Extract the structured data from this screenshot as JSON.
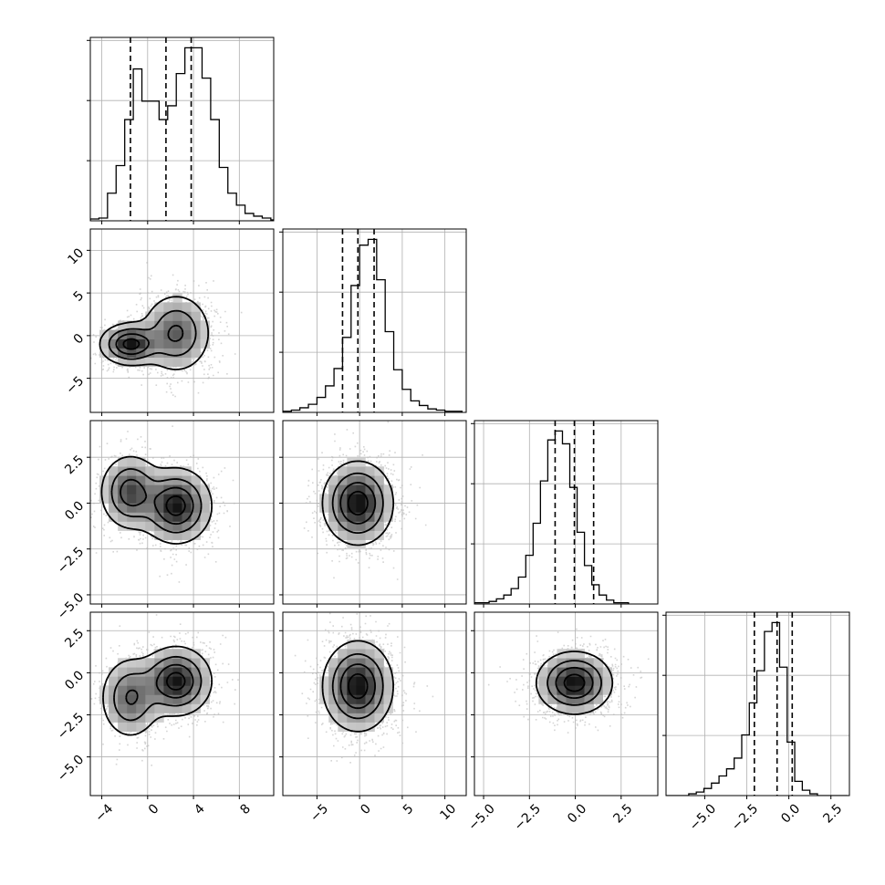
{
  "chart_data": {
    "type": "corner",
    "variables": 4,
    "grid": true,
    "quantile_line_style": "dashed",
    "ranges": [
      [
        -5,
        11
      ],
      [
        -9,
        12.5
      ],
      [
        -5.5,
        4.5
      ],
      [
        -7.3,
        3.6
      ]
    ],
    "ticks": [
      [
        -4,
        0,
        4,
        8
      ],
      [
        -5,
        0,
        5,
        10
      ],
      [
        -5.0,
        -2.5,
        0.0,
        2.5
      ],
      [
        -5.0,
        -2.5,
        0.0,
        2.5
      ]
    ],
    "tick_labels": [
      [
        "−4",
        "0",
        "4",
        "8"
      ],
      [
        "−5",
        "0",
        "5",
        "10"
      ],
      [
        "−5.0",
        "−2.5",
        "0.0",
        "2.5"
      ],
      [
        "−5.0",
        "−2.5",
        "0.0",
        "2.5"
      ]
    ],
    "marginals": [
      {
        "bin_start": -5.0,
        "bin_width": 0.75,
        "counts": [
          2,
          3,
          30,
          60,
          110,
          165,
          130,
          130,
          110,
          125,
          160,
          188,
          188,
          155,
          110,
          58,
          30,
          17,
          8,
          5,
          3,
          1
        ],
        "quantiles": [
          -1.5,
          1.6,
          3.8
        ]
      },
      {
        "bin_start": -9.0,
        "bin_width": 1.0,
        "counts": [
          1,
          2,
          4,
          7,
          13,
          23,
          38,
          65,
          110,
          145,
          150,
          115,
          70,
          37,
          20,
          10,
          6,
          3,
          2,
          1,
          1
        ],
        "quantiles": [
          -2.0,
          -0.2,
          1.7
        ]
      },
      {
        "bin_start": -5.5,
        "bin_width": 0.4,
        "counts": [
          1,
          1,
          2,
          4,
          7,
          12,
          21,
          38,
          63,
          96,
          128,
          135,
          125,
          91,
          56,
          30,
          15,
          7,
          3,
          1,
          1
        ],
        "quantiles": [
          -1.1,
          -0.05,
          1.0
        ]
      },
      {
        "bin_start": -7.3,
        "bin_width": 0.45,
        "counts": [
          0,
          0,
          0,
          1,
          2,
          4,
          7,
          11,
          15,
          21,
          34,
          52,
          70,
          92,
          97,
          72,
          30,
          8,
          3,
          1,
          0,
          0,
          0,
          0
        ],
        "quantiles": [
          -2.05,
          -0.7,
          0.2
        ]
      }
    ],
    "joint": [
      {
        "x": 0,
        "y": 1,
        "modes": [
          {
            "mx": -1.5,
            "my": -1.0,
            "sx": 1.3,
            "sy": 1.2,
            "w": 0.4
          },
          {
            "mx": 2.5,
            "my": 0.3,
            "sx": 1.5,
            "sy": 2.3,
            "w": 0.6
          }
        ]
      },
      {
        "x": 0,
        "y": 2,
        "modes": [
          {
            "mx": -1.5,
            "my": 0.6,
            "sx": 1.3,
            "sy": 1.0,
            "w": 0.4
          },
          {
            "mx": 2.5,
            "my": -0.15,
            "sx": 1.5,
            "sy": 1.0,
            "w": 0.6
          }
        ]
      },
      {
        "x": 0,
        "y": 3,
        "modes": [
          {
            "mx": -1.5,
            "my": -1.5,
            "sx": 1.3,
            "sy": 1.2,
            "w": 0.4
          },
          {
            "mx": 2.5,
            "my": -0.5,
            "sx": 1.5,
            "sy": 1.0,
            "w": 0.6
          }
        ]
      },
      {
        "x": 1,
        "y": 2,
        "modes": [
          {
            "mx": -0.2,
            "my": 0.0,
            "sx": 2.0,
            "sy": 1.1,
            "w": 1.0
          }
        ]
      },
      {
        "x": 1,
        "y": 3,
        "modes": [
          {
            "mx": -0.2,
            "my": -0.8,
            "sx": 2.0,
            "sy": 1.3,
            "w": 1.0
          }
        ]
      },
      {
        "x": 2,
        "y": 3,
        "modes": [
          {
            "mx": -0.05,
            "my": -0.6,
            "sx": 1.0,
            "sy": 0.9,
            "w": 1.0
          }
        ]
      }
    ]
  }
}
